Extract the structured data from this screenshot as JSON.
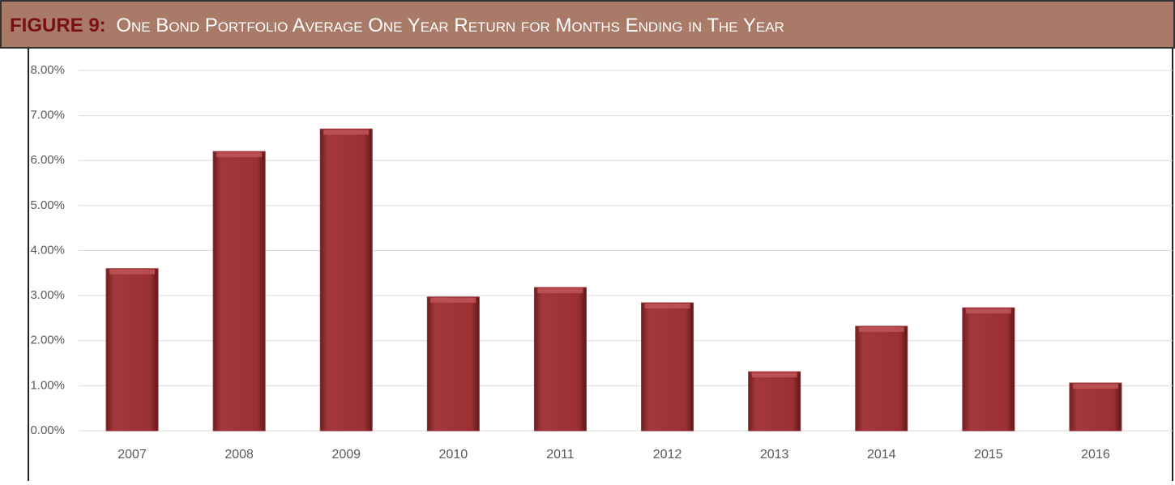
{
  "chart_data": {
    "type": "bar",
    "title_prefix": "FIGURE 9:",
    "title": "One Bond Portfolio Average One Year Return for Months Ending in The Year",
    "categories": [
      "2007",
      "2008",
      "2009",
      "2010",
      "2011",
      "2012",
      "2013",
      "2014",
      "2015",
      "2016"
    ],
    "values": [
      3.6,
      6.2,
      6.7,
      2.97,
      3.18,
      2.84,
      1.31,
      2.32,
      2.73,
      1.06
    ],
    "color": "#9b3034",
    "ylim": [
      0,
      8
    ],
    "yticks": [
      {
        "value": 0,
        "label": "0.00%"
      },
      {
        "value": 1,
        "label": "1.00%"
      },
      {
        "value": 2,
        "label": "2.00%"
      },
      {
        "value": 3,
        "label": "3.00%"
      },
      {
        "value": 4,
        "label": "4.00%"
      },
      {
        "value": 5,
        "label": "5.00%"
      },
      {
        "value": 6,
        "label": "6.00%"
      },
      {
        "value": 7,
        "label": "7.00%"
      },
      {
        "value": 8,
        "label": "8.00%"
      }
    ],
    "grid": true
  }
}
